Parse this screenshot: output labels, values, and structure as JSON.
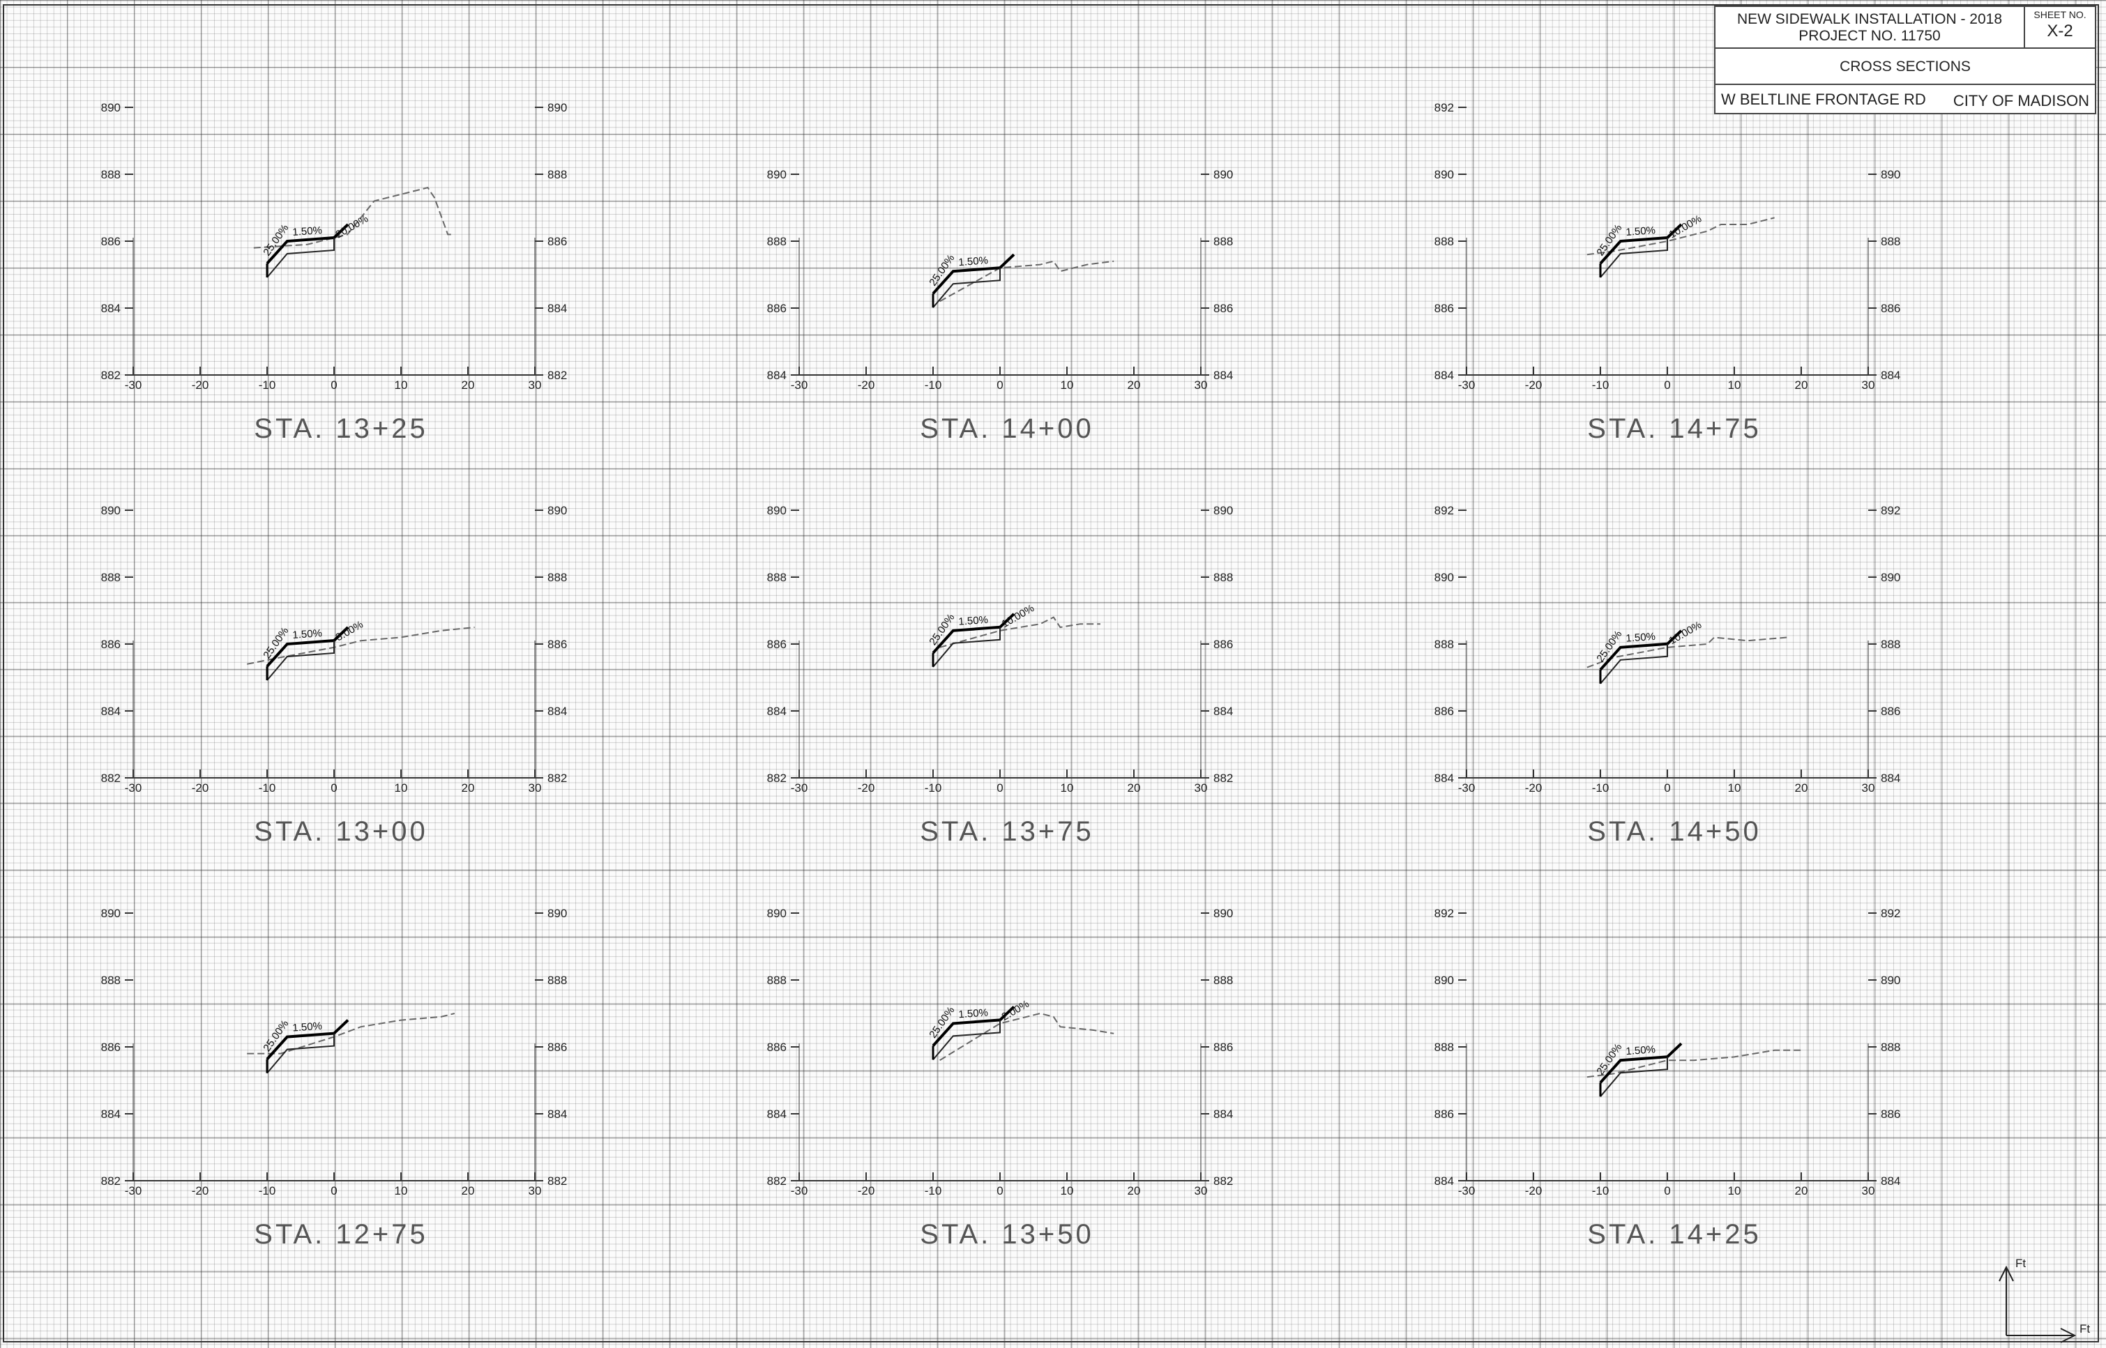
{
  "title_block": {
    "project_line1": "NEW SIDEWALK INSTALLATION - 2018",
    "project_line2": "PROJECT NO. 11750",
    "sheet_label": "SHEET NO.",
    "sheet_number": "X-2",
    "section_title": "CROSS SECTIONS",
    "road_name": "W BELTLINE FRONTAGE RD",
    "city": "CITY OF MADISON"
  },
  "offset_ticks": [
    "-30",
    "-20",
    "-10",
    "0",
    "10",
    "20",
    "30"
  ],
  "north_arrow": {
    "up_label": "Ft",
    "right_label": "Ft"
  },
  "sections": [
    {
      "station": "STA. 13+25",
      "elevations": [
        "882",
        "884",
        "886",
        "888",
        "890"
      ],
      "slopes": [
        "25.00%",
        "1.50%",
        "20.00%"
      ],
      "walk_elev": 886.0,
      "ground": [
        [
          -12,
          885.8
        ],
        [
          -4,
          885.9
        ],
        [
          2,
          886.2
        ],
        [
          6,
          887.2
        ],
        [
          10,
          887.4
        ],
        [
          14,
          887.6
        ],
        [
          15,
          887.3
        ],
        [
          17,
          886.2
        ],
        [
          18,
          886.2
        ]
      ]
    },
    {
      "station": "STA. 14+00",
      "elevations": [
        "884",
        "886",
        "888",
        "890"
      ],
      "slopes": [
        "25.00%",
        "1.50%"
      ],
      "walk_elev": 887.1,
      "ground": [
        [
          -9,
          886.2
        ],
        [
          0,
          887.2
        ],
        [
          6,
          887.3
        ],
        [
          8,
          887.4
        ],
        [
          9,
          887.1
        ],
        [
          13,
          887.3
        ],
        [
          17,
          887.4
        ]
      ]
    },
    {
      "station": "STA. 14+75",
      "elevations": [
        "884",
        "886",
        "888",
        "890",
        "892"
      ],
      "slopes": [
        "25.00%",
        "1.50%",
        "10.00%"
      ],
      "walk_elev": 888.0,
      "ground": [
        [
          -12,
          887.6
        ],
        [
          -8,
          887.7
        ],
        [
          0,
          888.0
        ],
        [
          6,
          888.3
        ],
        [
          8,
          888.5
        ],
        [
          12,
          888.5
        ],
        [
          16,
          888.7
        ]
      ]
    },
    {
      "station": "STA. 13+00",
      "elevations": [
        "882",
        "884",
        "886",
        "888",
        "890"
      ],
      "slopes": [
        "25.00%",
        "1.50%",
        "3.00%"
      ],
      "walk_elev": 886.0,
      "ground": [
        [
          -13,
          885.4
        ],
        [
          -8,
          885.6
        ],
        [
          0,
          885.9
        ],
        [
          4,
          886.1
        ],
        [
          10,
          886.2
        ],
        [
          16,
          886.4
        ],
        [
          21,
          886.5
        ]
      ]
    },
    {
      "station": "STA. 13+75",
      "elevations": [
        "882",
        "884",
        "886",
        "888",
        "890"
      ],
      "slopes": [
        "25.00%",
        "1.50%",
        "10.00%"
      ],
      "walk_elev": 886.4,
      "ground": [
        [
          -9,
          885.9
        ],
        [
          0,
          886.4
        ],
        [
          6,
          886.6
        ],
        [
          8,
          886.8
        ],
        [
          9,
          886.5
        ],
        [
          12,
          886.6
        ],
        [
          15,
          886.6
        ]
      ]
    },
    {
      "station": "STA. 14+50",
      "elevations": [
        "884",
        "886",
        "888",
        "890",
        "892"
      ],
      "slopes": [
        "25.00%",
        "1.50%",
        "10.00%"
      ],
      "walk_elev": 887.9,
      "ground": [
        [
          -12,
          887.3
        ],
        [
          -8,
          887.6
        ],
        [
          0,
          887.9
        ],
        [
          6,
          888.0
        ],
        [
          7,
          888.2
        ],
        [
          12,
          888.1
        ],
        [
          18,
          888.2
        ]
      ]
    },
    {
      "station": "STA. 12+75",
      "elevations": [
        "882",
        "884",
        "886",
        "888",
        "890"
      ],
      "slopes": [
        "25.00%",
        "1.50%"
      ],
      "walk_elev": 886.3,
      "ground": [
        [
          -13,
          885.8
        ],
        [
          -8,
          885.8
        ],
        [
          0,
          886.3
        ],
        [
          4,
          886.6
        ],
        [
          10,
          886.8
        ],
        [
          16,
          886.9
        ],
        [
          18,
          887.0
        ]
      ]
    },
    {
      "station": "STA. 13+50",
      "elevations": [
        "882",
        "884",
        "886",
        "888",
        "890"
      ],
      "slopes": [
        "25.00%",
        "1.50%",
        "2.00%"
      ],
      "walk_elev": 886.7,
      "ground": [
        [
          -9,
          885.6
        ],
        [
          0,
          886.7
        ],
        [
          6,
          887.0
        ],
        [
          8,
          886.9
        ],
        [
          9,
          886.6
        ],
        [
          14,
          886.5
        ],
        [
          17,
          886.4
        ]
      ]
    },
    {
      "station": "STA. 14+25",
      "elevations": [
        "884",
        "886",
        "888",
        "890",
        "892"
      ],
      "slopes": [
        "25.00%",
        "1.50%"
      ],
      "walk_elev": 887.6,
      "ground": [
        [
          -12,
          887.1
        ],
        [
          -8,
          887.2
        ],
        [
          0,
          887.6
        ],
        [
          4,
          887.6
        ],
        [
          10,
          887.7
        ],
        [
          16,
          887.9
        ],
        [
          20,
          887.9
        ]
      ]
    }
  ]
}
